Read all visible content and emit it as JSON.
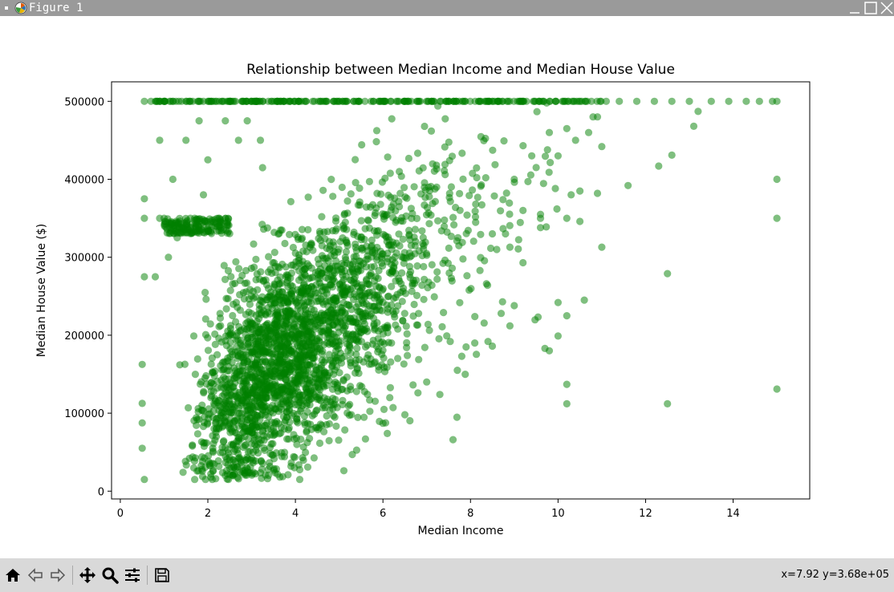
{
  "window": {
    "title": "Figure 1"
  },
  "toolbar": {
    "buttons": [
      "home-icon",
      "back-icon",
      "forward-icon",
      "pan-icon",
      "zoom-icon",
      "configure-subplots-icon",
      "save-icon"
    ],
    "coords": "x=7.92 y=3.68e+05"
  },
  "colors": {
    "points": "#008000",
    "titlebar": "#9a9a9a",
    "toolbar": "#d9d9d9"
  },
  "chart_data": {
    "type": "scatter",
    "title": "Relationship between Median Income and Median House Value",
    "xlabel": "Median Income",
    "ylabel": "Median House Value ($)",
    "xlim": [
      -0.2,
      15.75
    ],
    "ylim": [
      -10000,
      525000
    ],
    "xticks": [
      0,
      2,
      4,
      6,
      8,
      10,
      12,
      14
    ],
    "xtick_labels": [
      "0",
      "2",
      "4",
      "6",
      "8",
      "10",
      "12",
      "14"
    ],
    "yticks": [
      0,
      100000,
      200000,
      300000,
      400000,
      500000
    ],
    "ytick_labels": [
      "0",
      "100000",
      "200000",
      "300000",
      "400000",
      "500000"
    ],
    "grid": false,
    "legend": "none",
    "series": [
      {
        "color": "#008000",
        "alpha": 0.5,
        "points": [
          [
            0.5,
            162500
          ],
          [
            0.5,
            112500
          ],
          [
            0.5,
            87500
          ],
          [
            0.5,
            55000
          ],
          [
            0.55,
            375000
          ],
          [
            0.55,
            350000
          ],
          [
            0.55,
            275000
          ],
          [
            0.55,
            15000
          ],
          [
            0.55,
            500001
          ],
          [
            0.9,
            350000
          ],
          [
            0.9,
            450000
          ],
          [
            0.8,
            275000
          ],
          [
            1.0,
            350000
          ],
          [
            1.1,
            300000
          ],
          [
            1.2,
            400000
          ],
          [
            1.5,
            450000
          ],
          [
            1.6,
            350000
          ],
          [
            1.7,
            350000
          ],
          [
            0.7,
            500001
          ],
          [
            0.9,
            500001
          ],
          [
            1.2,
            500001
          ],
          [
            1.5,
            500001
          ],
          [
            1.8,
            500001
          ],
          [
            2.0,
            500001
          ],
          [
            2.2,
            500001
          ],
          [
            2.5,
            500001
          ],
          [
            1.7,
            15000
          ],
          [
            2.1,
            15000
          ],
          [
            2.4,
            20000
          ],
          [
            2.9,
            25000
          ],
          [
            4.1,
            15000
          ],
          [
            3.9,
            32000
          ],
          [
            5.3,
            47000
          ],
          [
            7.6,
            66000
          ],
          [
            6.1,
            74000
          ],
          [
            1.8,
            475000
          ],
          [
            2.0,
            425000
          ],
          [
            2.4,
            475000
          ],
          [
            2.7,
            450000
          ],
          [
            2.9,
            475000
          ],
          [
            3.2,
            450000
          ],
          [
            1.3,
            325000
          ],
          [
            1.9,
            380000
          ],
          [
            9.2,
            293000
          ],
          [
            9.7,
            183000
          ],
          [
            9.8,
            180000
          ],
          [
            10.0,
            199000
          ],
          [
            10.2,
            137000
          ],
          [
            10.2,
            112000
          ],
          [
            10.0,
            242000
          ],
          [
            10.2,
            225000
          ],
          [
            10.6,
            245000
          ],
          [
            8.4,
            192000
          ],
          [
            8.5,
            186000
          ],
          [
            8.7,
            228000
          ],
          [
            8.9,
            212000
          ],
          [
            9.0,
            238000
          ],
          [
            8.1,
            224000
          ],
          [
            8.9,
            313000
          ],
          [
            8.5,
            330000
          ],
          [
            11.0,
            313000
          ],
          [
            11.6,
            392000
          ],
          [
            12.3,
            417000
          ],
          [
            12.6,
            431000
          ],
          [
            12.5,
            279000
          ],
          [
            12.5,
            112000
          ],
          [
            10.9,
            382000
          ],
          [
            10.5,
            346000
          ],
          [
            10.2,
            350000
          ],
          [
            13.1,
            468000
          ],
          [
            13.2,
            487000
          ],
          [
            15.0,
            500001
          ],
          [
            15.0,
            400000
          ],
          [
            15.0,
            350000
          ],
          [
            15.0,
            131000
          ],
          [
            14.9,
            500001
          ],
          [
            9.6,
            350000
          ],
          [
            9.6,
            355000
          ],
          [
            9.5,
            415000
          ],
          [
            10.0,
            430000
          ],
          [
            10.2,
            465000
          ],
          [
            10.4,
            450000
          ],
          [
            10.7,
            460000
          ],
          [
            10.8,
            480000
          ],
          [
            11.0,
            442000
          ],
          [
            10.3,
            380000
          ],
          [
            10.5,
            385000
          ],
          [
            10.9,
            480000
          ],
          [
            9.8,
            460000
          ],
          [
            9.2,
            360000
          ],
          [
            9.4,
            430000
          ],
          [
            9.0,
            400000
          ],
          [
            8.8,
            330000
          ],
          [
            8.6,
            310000
          ],
          [
            11.1,
            500001
          ],
          [
            11.4,
            500001
          ],
          [
            11.8,
            500001
          ],
          [
            12.2,
            500001
          ],
          [
            12.6,
            500001
          ],
          [
            13.0,
            500001
          ],
          [
            13.5,
            500001
          ],
          [
            13.9,
            500001
          ],
          [
            14.3,
            500001
          ],
          [
            14.6,
            500001
          ],
          [
            7.0,
            140000
          ],
          [
            7.3,
            124000
          ],
          [
            6.8,
            126000
          ],
          [
            7.7,
            155000
          ],
          [
            7.8,
            173000
          ],
          [
            7.9,
            185000
          ],
          [
            6.5,
            98000
          ],
          [
            6.0,
            87000
          ],
          [
            5.6,
            67000
          ]
        ]
      }
    ]
  }
}
